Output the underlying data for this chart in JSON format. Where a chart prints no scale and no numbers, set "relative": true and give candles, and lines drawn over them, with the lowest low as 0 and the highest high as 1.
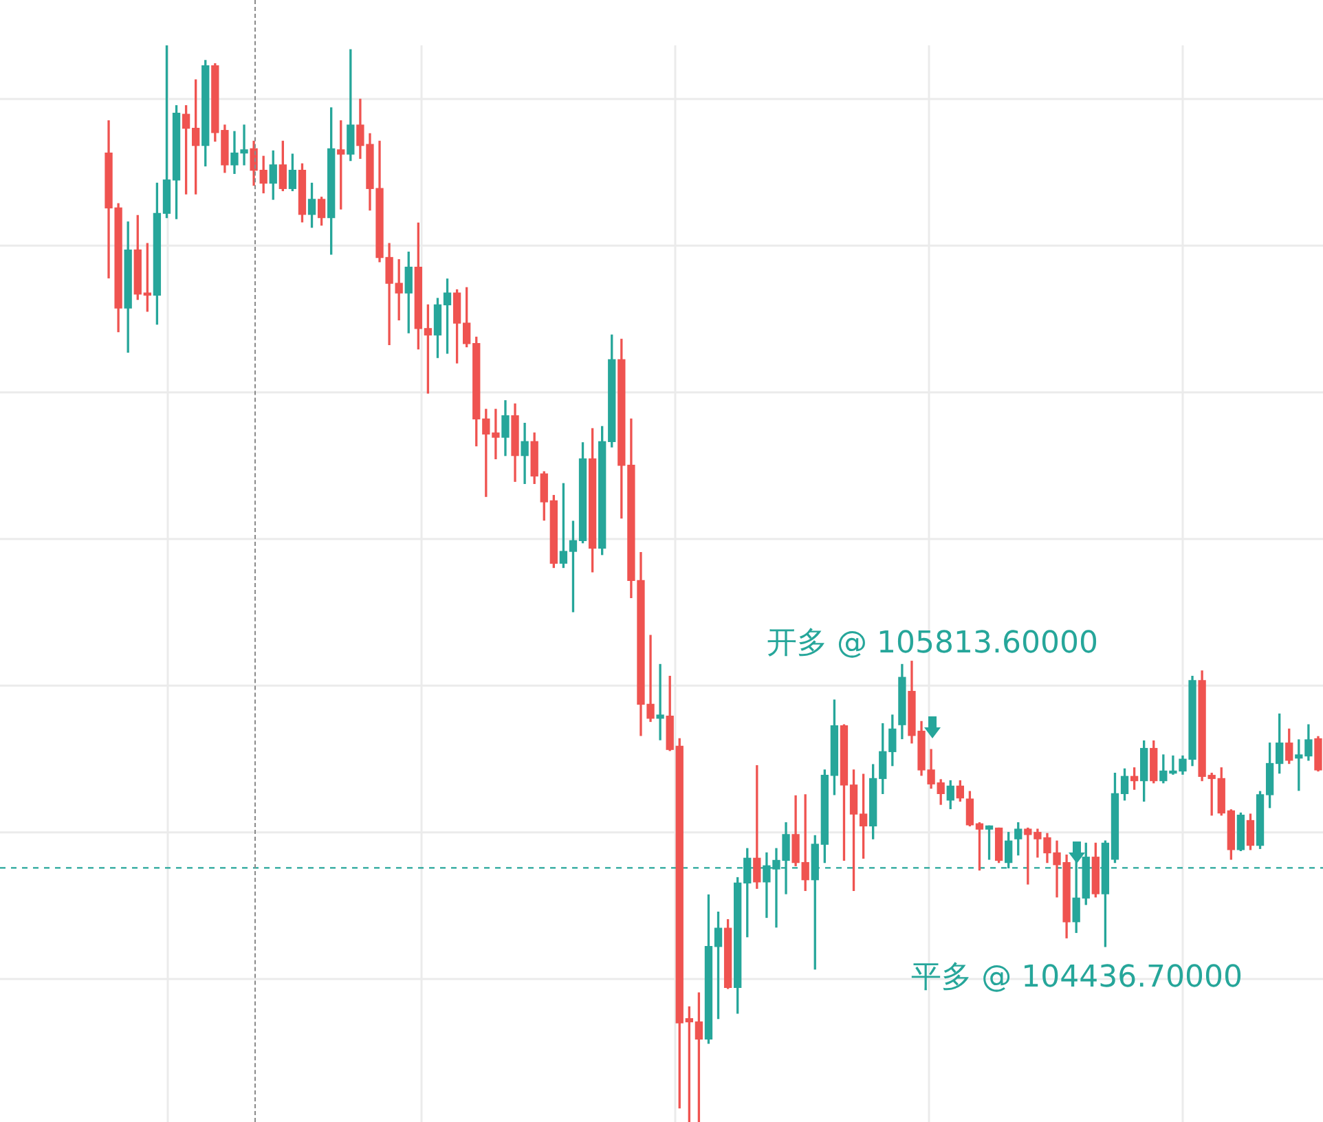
{
  "chart_data": {
    "type": "candlestick",
    "relative": true,
    "grid": true,
    "categories": [
      null,
      null,
      null,
      null,
      null,
      null,
      null,
      null,
      null,
      null,
      null,
      null,
      null,
      null,
      null,
      null,
      null,
      null,
      null,
      null,
      null,
      null,
      null,
      null,
      null,
      null,
      null,
      null,
      null,
      null,
      null,
      null,
      null,
      null,
      null,
      null,
      null,
      null,
      null,
      null,
      null,
      null,
      null,
      null,
      null,
      null,
      null,
      null,
      null,
      null,
      null,
      null,
      null,
      null,
      null,
      null,
      null,
      null,
      null,
      null,
      null,
      null,
      null,
      null,
      null,
      null,
      null,
      null,
      null,
      null,
      null,
      null,
      null,
      null,
      null,
      null,
      null,
      null,
      null,
      null,
      null,
      null,
      null,
      null,
      null,
      null,
      null,
      null,
      null,
      null,
      null,
      null,
      null,
      null,
      null,
      null,
      null,
      null,
      null,
      null,
      null,
      null,
      null,
      null,
      null,
      null,
      null,
      null,
      null,
      null,
      null,
      null,
      null,
      null,
      null,
      null,
      null,
      null,
      null,
      null,
      null,
      null,
      null,
      null,
      null,
      null
    ],
    "ohlc": [
      [
        0.9,
        0.93,
        0.784,
        0.849
      ],
      [
        0.849,
        0.853,
        0.734,
        0.756
      ],
      [
        0.756,
        0.836,
        0.715,
        0.81
      ],
      [
        0.81,
        0.842,
        0.764,
        0.769
      ],
      [
        0.77,
        0.816,
        0.753,
        0.768
      ],
      [
        0.768,
        0.872,
        0.741,
        0.844
      ],
      [
        0.844,
        1.0,
        0.84,
        0.875
      ],
      [
        0.875,
        0.944,
        0.839,
        0.937
      ],
      [
        0.936,
        0.944,
        0.862,
        0.923
      ],
      [
        0.923,
        0.968,
        0.862,
        0.907
      ],
      [
        0.907,
        0.986,
        0.888,
        0.981
      ],
      [
        0.981,
        0.983,
        0.911,
        0.919
      ],
      [
        0.921,
        0.926,
        0.882,
        0.889
      ],
      [
        0.889,
        0.92,
        0.881,
        0.9
      ],
      [
        0.9,
        0.926,
        0.889,
        0.903
      ],
      [
        0.904,
        0.911,
        0.87,
        0.884
      ],
      [
        0.884,
        0.897,
        0.863,
        0.872
      ],
      [
        0.872,
        0.902,
        0.857,
        0.889
      ],
      [
        0.889,
        0.911,
        0.865,
        0.867
      ],
      [
        0.867,
        0.899,
        0.865,
        0.884
      ],
      [
        0.884,
        0.89,
        0.836,
        0.843
      ],
      [
        0.843,
        0.872,
        0.831,
        0.857
      ],
      [
        0.857,
        0.859,
        0.833,
        0.84
      ],
      [
        0.84,
        0.942,
        0.806,
        0.904
      ],
      [
        0.903,
        0.93,
        0.848,
        0.899
      ],
      [
        0.899,
        0.996,
        0.893,
        0.926
      ],
      [
        0.926,
        0.95,
        0.895,
        0.907
      ],
      [
        0.908,
        0.918,
        0.847,
        0.867
      ],
      [
        0.867,
        0.911,
        0.799,
        0.803
      ],
      [
        0.803,
        0.816,
        0.722,
        0.779
      ],
      [
        0.779,
        0.801,
        0.745,
        0.77
      ],
      [
        0.77,
        0.808,
        0.733,
        0.794
      ],
      [
        0.794,
        0.835,
        0.718,
        0.737
      ],
      [
        0.737,
        0.759,
        0.677,
        0.731
      ],
      [
        0.731,
        0.765,
        0.71,
        0.759
      ],
      [
        0.759,
        0.783,
        0.714,
        0.77
      ],
      [
        0.77,
        0.773,
        0.705,
        0.742
      ],
      [
        0.742,
        0.775,
        0.72,
        0.723
      ],
      [
        0.723,
        0.729,
        0.628,
        0.653
      ],
      [
        0.653,
        0.662,
        0.581,
        0.639
      ],
      [
        0.64,
        0.662,
        0.616,
        0.636
      ],
      [
        0.636,
        0.67,
        0.619,
        0.656
      ],
      [
        0.656,
        0.667,
        0.595,
        0.619
      ],
      [
        0.619,
        0.649,
        0.593,
        0.632
      ],
      [
        0.632,
        0.64,
        0.593,
        0.6
      ],
      [
        0.602,
        0.604,
        0.559,
        0.576
      ],
      [
        0.577,
        0.582,
        0.515,
        0.519
      ],
      [
        0.519,
        0.593,
        0.515,
        0.53
      ],
      [
        0.53,
        0.558,
        0.474,
        0.54
      ],
      [
        0.54,
        0.631,
        0.538,
        0.616
      ],
      [
        0.616,
        0.644,
        0.511,
        0.533
      ],
      [
        0.533,
        0.646,
        0.527,
        0.632
      ],
      [
        0.632,
        0.731,
        0.627,
        0.708
      ],
      [
        0.708,
        0.727,
        0.561,
        0.61
      ],
      [
        0.61,
        0.653,
        0.487,
        0.503
      ],
      [
        0.503,
        0.529,
        0.359,
        0.388
      ],
      [
        0.388,
        0.452,
        0.372,
        0.375
      ],
      [
        0.375,
        0.425,
        0.355,
        0.378
      ],
      [
        0.377,
        0.414,
        0.345,
        0.346
      ],
      [
        0.349,
        0.356,
        0.013,
        0.092
      ],
      [
        0.096,
        0.107,
        0.0,
        0.093
      ],
      [
        0.093,
        0.12,
        0.0,
        0.077
      ],
      [
        0.077,
        0.211,
        0.073,
        0.163
      ],
      [
        0.163,
        0.195,
        0.096,
        0.18
      ],
      [
        0.18,
        0.188,
        0.124,
        0.125
      ],
      [
        0.125,
        0.227,
        0.101,
        0.222
      ],
      [
        0.222,
        0.254,
        0.172,
        0.245
      ],
      [
        0.245,
        0.331,
        0.217,
        0.223
      ],
      [
        0.223,
        0.25,
        0.19,
        0.238
      ],
      [
        0.235,
        0.254,
        0.181,
        0.243
      ],
      [
        0.243,
        0.278,
        0.212,
        0.267
      ],
      [
        0.267,
        0.303,
        0.238,
        0.241
      ],
      [
        0.241,
        0.304,
        0.215,
        0.225
      ],
      [
        0.225,
        0.266,
        0.142,
        0.258
      ],
      [
        0.258,
        0.327,
        0.241,
        0.322
      ],
      [
        0.322,
        0.392,
        0.304,
        0.368
      ],
      [
        0.368,
        0.369,
        0.243,
        0.313
      ],
      [
        0.313,
        0.327,
        0.215,
        0.286
      ],
      [
        0.286,
        0.323,
        0.245,
        0.275
      ],
      [
        0.275,
        0.332,
        0.263,
        0.319
      ],
      [
        0.319,
        0.37,
        0.305,
        0.344
      ],
      [
        0.344,
        0.378,
        0.331,
        0.365
      ],
      [
        0.369,
        0.425,
        0.356,
        0.413
      ],
      [
        0.4,
        0.428,
        0.352,
        0.359
      ],
      [
        0.363,
        0.372,
        0.322,
        0.327
      ],
      [
        0.327,
        0.346,
        0.31,
        0.314
      ],
      [
        0.315,
        0.318,
        0.295,
        0.305
      ],
      [
        0.299,
        0.317,
        0.291,
        0.312
      ],
      [
        0.312,
        0.317,
        0.298,
        0.301
      ],
      [
        0.3,
        0.307,
        0.275,
        0.276
      ],
      [
        0.277,
        0.278,
        0.234,
        0.272
      ],
      [
        0.272,
        0.275,
        0.244,
        0.275
      ],
      [
        0.273,
        0.273,
        0.241,
        0.243
      ],
      [
        0.241,
        0.269,
        0.236,
        0.261
      ],
      [
        0.263,
        0.278,
        0.248,
        0.272
      ],
      [
        0.272,
        0.273,
        0.221,
        0.267
      ],
      [
        0.269,
        0.272,
        0.246,
        0.263
      ],
      [
        0.264,
        0.268,
        0.241,
        0.25
      ],
      [
        0.25,
        0.261,
        0.209,
        0.239
      ],
      [
        0.241,
        0.248,
        0.171,
        0.186
      ],
      [
        0.186,
        0.254,
        0.176,
        0.208
      ],
      [
        0.208,
        0.259,
        0.202,
        0.246
      ],
      [
        0.246,
        0.259,
        0.209,
        0.212
      ],
      [
        0.212,
        0.261,
        0.163,
        0.259
      ],
      [
        0.244,
        0.324,
        0.241,
        0.305
      ],
      [
        0.305,
        0.328,
        0.299,
        0.321
      ],
      [
        0.321,
        0.329,
        0.309,
        0.317
      ],
      [
        0.317,
        0.354,
        0.298,
        0.347
      ],
      [
        0.347,
        0.354,
        0.315,
        0.317
      ],
      [
        0.317,
        0.341,
        0.315,
        0.326
      ],
      [
        0.324,
        0.34,
        0.323,
        0.326
      ],
      [
        0.326,
        0.34,
        0.323,
        0.337
      ],
      [
        0.337,
        0.414,
        0.331,
        0.41
      ],
      [
        0.41,
        0.419,
        0.317,
        0.321
      ],
      [
        0.322,
        0.324,
        0.285,
        0.319
      ],
      [
        0.319,
        0.329,
        0.285,
        0.287
      ],
      [
        0.289,
        0.29,
        0.244,
        0.253
      ],
      [
        0.253,
        0.287,
        0.252,
        0.285
      ],
      [
        0.28,
        0.286,
        0.253,
        0.257
      ],
      [
        0.257,
        0.307,
        0.254,
        0.304
      ],
      [
        0.304,
        0.352,
        0.292,
        0.333
      ],
      [
        0.333,
        0.379,
        0.324,
        0.352
      ],
      [
        0.352,
        0.365,
        0.333,
        0.336
      ],
      [
        0.338,
        0.355,
        0.308,
        0.341
      ],
      [
        0.34,
        0.369,
        0.336,
        0.355
      ],
      [
        0.356,
        0.358,
        0.326,
        0.327
      ]
    ],
    "colors": [
      "#ef5350",
      "#ef5350",
      "#26a69a",
      "#ef5350",
      "#ef5350",
      "#26a69a",
      "#26a69a",
      "#26a69a",
      "#ef5350",
      "#ef5350",
      "#26a69a",
      "#ef5350",
      "#ef5350",
      "#26a69a",
      "#26a69a",
      "#ef5350",
      "#ef5350",
      "#26a69a",
      "#ef5350",
      "#26a69a",
      "#ef5350",
      "#26a69a",
      "#ef5350",
      "#26a69a",
      "#ef5350",
      "#26a69a",
      "#ef5350",
      "#ef5350",
      "#ef5350",
      "#ef5350",
      "#ef5350",
      "#26a69a",
      "#ef5350",
      "#ef5350",
      "#26a69a",
      "#26a69a",
      "#ef5350",
      "#ef5350",
      "#ef5350",
      "#ef5350",
      "#ef5350",
      "#26a69a",
      "#ef5350",
      "#26a69a",
      "#ef5350",
      "#ef5350",
      "#ef5350",
      "#26a69a",
      "#26a69a",
      "#26a69a",
      "#ef5350",
      "#26a69a",
      "#26a69a",
      "#ef5350",
      "#ef5350",
      "#ef5350",
      "#ef5350",
      "#26a69a",
      "#ef5350",
      "#ef5350",
      "#ef5350",
      "#ef5350",
      "#26a69a",
      "#26a69a",
      "#ef5350",
      "#26a69a",
      "#26a69a",
      "#ef5350",
      "#26a69a",
      "#26a69a",
      "#26a69a",
      "#ef5350",
      "#ef5350",
      "#26a69a",
      "#26a69a",
      "#26a69a",
      "#ef5350",
      "#ef5350",
      "#ef5350",
      "#26a69a",
      "#26a69a",
      "#26a69a",
      "#26a69a",
      "#ef5350",
      "#ef5350",
      "#ef5350",
      "#ef5350",
      "#26a69a",
      "#ef5350",
      "#ef5350",
      "#ef5350",
      "#26a69a",
      "#ef5350",
      "#26a69a",
      "#26a69a",
      "#ef5350",
      "#ef5350",
      "#ef5350",
      "#ef5350",
      "#ef5350",
      "#26a69a",
      "#26a69a",
      "#ef5350",
      "#26a69a",
      "#26a69a",
      "#26a69a",
      "#ef5350",
      "#26a69a",
      "#ef5350",
      "#26a69a",
      "#26a69a",
      "#26a69a",
      "#26a69a",
      "#ef5350",
      "#ef5350",
      "#ef5350",
      "#ef5350",
      "#26a69a",
      "#ef5350",
      "#26a69a",
      "#26a69a",
      "#26a69a",
      "#ef5350",
      "#26a69a",
      "#26a69a",
      "#ef5350"
    ],
    "ref_lines": [
      {
        "axis": "y",
        "value": 0.236,
        "color": "#26a69a",
        "line_style": "dashed"
      }
    ],
    "annotations": [
      "开多 @ 105813.60000",
      "平多 @ 104436.70000"
    ]
  }
}
